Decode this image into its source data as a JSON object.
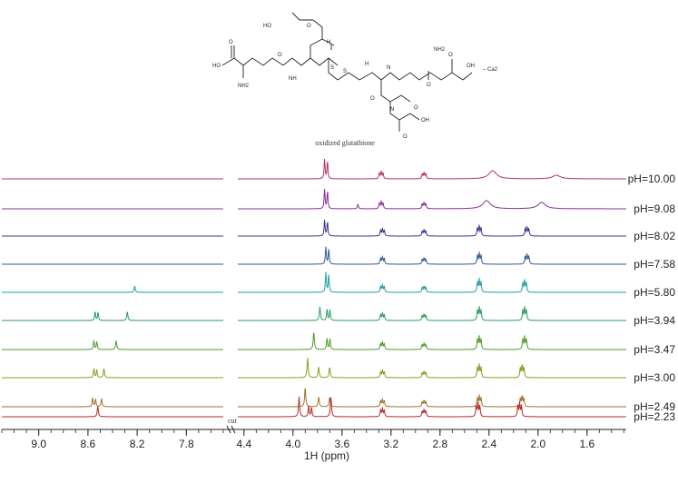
{
  "molecule": {
    "atom_labels": [
      "HO",
      "O",
      "O",
      "NH",
      "O",
      "HO",
      "H",
      "S",
      "S",
      "N",
      "O",
      "OH",
      "NH2",
      "H",
      "O",
      "O",
      "NH2",
      "O",
      "N",
      "O",
      "OH"
    ],
    "counterion": "Ca2"
  },
  "chart_data": {
    "type": "line",
    "title": "oxidized glutathione",
    "xlabel": "1H (ppm)",
    "axis_break_label": "cut",
    "segments": [
      {
        "xlim": [
          9.3,
          7.5
        ],
        "ticks": [
          "9.0",
          "8.6",
          "8.2",
          "7.8"
        ],
        "tick_values": [
          9.0,
          8.6,
          8.2,
          7.8
        ]
      },
      {
        "xlim": [
          4.45,
          1.28
        ],
        "ticks": [
          "4.4",
          "4.0",
          "3.6",
          "3.2",
          "2.8",
          "2.4",
          "2.0",
          "1.6"
        ],
        "tick_values": [
          4.4,
          4.0,
          3.6,
          3.2,
          2.8,
          2.4,
          2.0,
          1.6
        ]
      }
    ],
    "series": [
      {
        "name": "pH=10.00",
        "color": "#b0306c",
        "peaks": [
          {
            "ppm": 3.73,
            "h": 22,
            "m": "d"
          },
          {
            "ppm": 3.28,
            "h": 8,
            "m": "t"
          },
          {
            "ppm": 2.93,
            "h": 7,
            "m": "t"
          },
          {
            "ppm": 2.37,
            "h": 9,
            "m": "br"
          },
          {
            "ppm": 1.85,
            "h": 4,
            "m": "br"
          }
        ]
      },
      {
        "name": "pH=9.08",
        "color": "#8a2f9a",
        "peaks": [
          {
            "ppm": 3.73,
            "h": 22,
            "m": "d"
          },
          {
            "ppm": 3.47,
            "h": 5,
            "m": "s"
          },
          {
            "ppm": 3.28,
            "h": 8,
            "m": "t"
          },
          {
            "ppm": 2.93,
            "h": 7,
            "m": "t"
          },
          {
            "ppm": 2.42,
            "h": 9,
            "m": "br"
          },
          {
            "ppm": 1.97,
            "h": 7,
            "m": "br"
          }
        ]
      },
      {
        "name": "pH=8.02",
        "color": "#38358e",
        "peaks": [
          {
            "ppm": 3.73,
            "h": 18,
            "m": "d"
          },
          {
            "ppm": 3.27,
            "h": 8,
            "m": "t"
          },
          {
            "ppm": 2.93,
            "h": 7,
            "m": "t"
          },
          {
            "ppm": 2.48,
            "h": 11,
            "m": "t"
          },
          {
            "ppm": 2.09,
            "h": 10,
            "m": "t"
          }
        ]
      },
      {
        "name": "pH=7.58",
        "color": "#345a8f",
        "peaks": [
          {
            "ppm": 3.72,
            "h": 19,
            "m": "d"
          },
          {
            "ppm": 3.27,
            "h": 8,
            "m": "t"
          },
          {
            "ppm": 2.93,
            "h": 7,
            "m": "t"
          },
          {
            "ppm": 2.48,
            "h": 12,
            "m": "t"
          },
          {
            "ppm": 2.09,
            "h": 11,
            "m": "t"
          }
        ]
      },
      {
        "name": "pH=5.80",
        "color": "#1e9ea0",
        "peaks": [
          {
            "ppm": 8.22,
            "h": 7,
            "m": "s"
          },
          {
            "ppm": 3.72,
            "h": 22,
            "m": "d"
          },
          {
            "ppm": 3.27,
            "h": 8,
            "m": "t"
          },
          {
            "ppm": 2.93,
            "h": 7,
            "m": "t"
          },
          {
            "ppm": 2.48,
            "h": 14,
            "m": "t"
          },
          {
            "ppm": 2.11,
            "h": 13,
            "m": "t"
          }
        ]
      },
      {
        "name": "pH=3.94",
        "color": "#2a9a5c",
        "peaks": [
          {
            "ppm": 8.53,
            "h": 10,
            "m": "d"
          },
          {
            "ppm": 8.28,
            "h": 10,
            "m": "s"
          },
          {
            "ppm": 3.78,
            "h": 15,
            "m": "s"
          },
          {
            "ppm": 3.71,
            "h": 13,
            "m": "d"
          },
          {
            "ppm": 3.27,
            "h": 8,
            "m": "t"
          },
          {
            "ppm": 2.93,
            "h": 7,
            "m": "t"
          },
          {
            "ppm": 2.48,
            "h": 14,
            "m": "t"
          },
          {
            "ppm": 2.11,
            "h": 14,
            "m": "t"
          }
        ]
      },
      {
        "name": "pH=3.47",
        "color": "#4e9a2a",
        "peaks": [
          {
            "ppm": 8.54,
            "h": 10,
            "m": "d"
          },
          {
            "ppm": 8.37,
            "h": 10,
            "m": "s"
          },
          {
            "ppm": 3.83,
            "h": 20,
            "m": "s"
          },
          {
            "ppm": 3.71,
            "h": 13,
            "m": "d"
          },
          {
            "ppm": 3.27,
            "h": 8,
            "m": "t"
          },
          {
            "ppm": 2.93,
            "h": 7,
            "m": "t"
          },
          {
            "ppm": 2.48,
            "h": 14,
            "m": "t"
          },
          {
            "ppm": 2.11,
            "h": 14,
            "m": "t"
          }
        ]
      },
      {
        "name": "pH=3.00",
        "color": "#8c9a1e",
        "peaks": [
          {
            "ppm": 8.54,
            "h": 10,
            "m": "d"
          },
          {
            "ppm": 8.47,
            "h": 10,
            "m": "s"
          },
          {
            "ppm": 3.88,
            "h": 22,
            "m": "s"
          },
          {
            "ppm": 3.79,
            "h": 12,
            "m": "s"
          },
          {
            "ppm": 3.7,
            "h": 12,
            "m": "s"
          },
          {
            "ppm": 3.27,
            "h": 8,
            "m": "t"
          },
          {
            "ppm": 2.93,
            "h": 7,
            "m": "t"
          },
          {
            "ppm": 2.48,
            "h": 14,
            "m": "t"
          },
          {
            "ppm": 2.13,
            "h": 14,
            "m": "t"
          }
        ]
      },
      {
        "name": "pH=2.49",
        "color": "#a0722a",
        "peaks": [
          {
            "ppm": 8.55,
            "h": 10,
            "m": "d"
          },
          {
            "ppm": 8.49,
            "h": 9,
            "m": "s"
          },
          {
            "ppm": 3.9,
            "h": 22,
            "m": "s"
          },
          {
            "ppm": 3.79,
            "h": 11,
            "m": "s"
          },
          {
            "ppm": 3.7,
            "h": 11,
            "m": "s"
          },
          {
            "ppm": 3.27,
            "h": 8,
            "m": "t"
          },
          {
            "ppm": 2.93,
            "h": 7,
            "m": "t"
          },
          {
            "ppm": 2.48,
            "h": 12,
            "m": "t"
          },
          {
            "ppm": 2.13,
            "h": 12,
            "m": "t"
          }
        ]
      },
      {
        "name": "pH=2.23",
        "color": "#b32a2a",
        "peaks": [
          {
            "ppm": 8.52,
            "h": 12,
            "m": "s"
          },
          {
            "ppm": 3.95,
            "h": 22,
            "m": "s"
          },
          {
            "ppm": 3.86,
            "h": 12,
            "m": "d"
          },
          {
            "ppm": 3.69,
            "h": 22,
            "m": "s"
          },
          {
            "ppm": 3.27,
            "h": 9,
            "m": "t"
          },
          {
            "ppm": 2.93,
            "h": 8,
            "m": "t"
          },
          {
            "ppm": 2.49,
            "h": 15,
            "m": "t"
          },
          {
            "ppm": 2.15,
            "h": 15,
            "m": "t"
          }
        ]
      }
    ]
  }
}
